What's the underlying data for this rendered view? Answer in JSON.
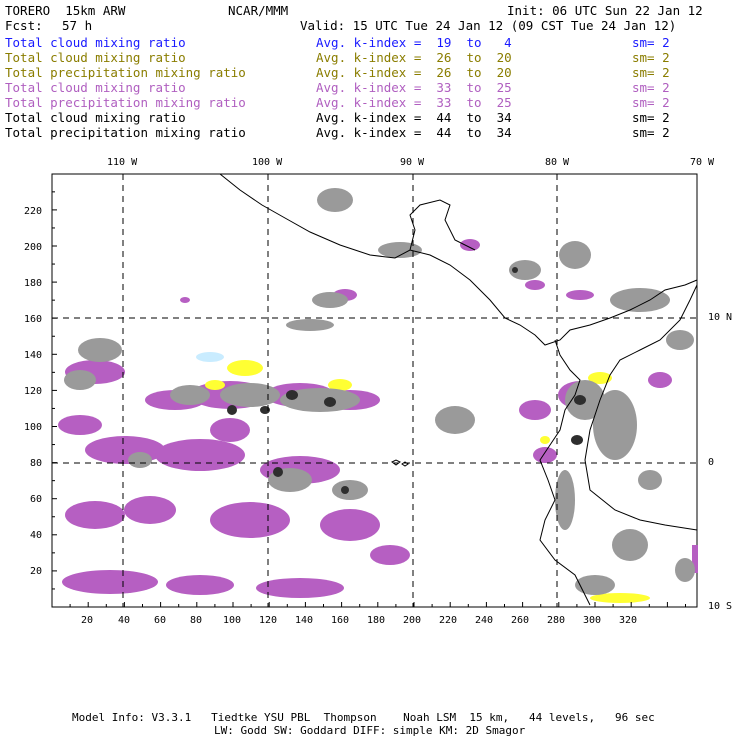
{
  "header": {
    "model_title": "TORERO  15km ARW",
    "org": "NCAR/MMM",
    "init": "Init: 06 UTC Sun 22 Jan 12",
    "fcst_label": "Fcst:",
    "fcst_value": "57 h",
    "valid": "Valid: 15 UTC Tue 24 Jan 12 (09 CST Tue 24 Jan 12)"
  },
  "legend": [
    {
      "field": "Total cloud mixing ratio",
      "index": "Avg. k-index =  19  to   4",
      "sm": "sm= 2",
      "color": "#1a1aff"
    },
    {
      "field": "Total cloud mixing ratio",
      "index": "Avg. k-index =  26  to  20",
      "sm": "sm= 2",
      "color": "#8a7d00"
    },
    {
      "field": "Total precipitation mixing ratio",
      "index": "Avg. k-index =  26  to  20",
      "sm": "sm= 2",
      "color": "#8a7d00"
    },
    {
      "field": "Total cloud mixing ratio",
      "index": "Avg. k-index =  33  to  25",
      "sm": "sm= 2",
      "color": "#b05fc0"
    },
    {
      "field": "Total precipitation mixing ratio",
      "index": "Avg. k-index =  33  to  25",
      "sm": "sm= 2",
      "color": "#b05fc0"
    },
    {
      "field": "Total cloud mixing ratio",
      "index": "Avg. k-index =  44  to  34",
      "sm": "sm= 2",
      "color": "#000000"
    },
    {
      "field": "Total precipitation mixing ratio",
      "index": "Avg. k-index =  44  to  34",
      "sm": "sm= 2",
      "color": "#000000"
    }
  ],
  "map": {
    "lon_labels": [
      "110 W",
      "100 W",
      "90 W",
      "80 W",
      "70 W"
    ],
    "lat_labels": [
      "10 N",
      "0",
      "10 S"
    ],
    "x_ticks": [
      "20",
      "40",
      "60",
      "80",
      "100",
      "120",
      "140",
      "160",
      "180",
      "200",
      "220",
      "240",
      "260",
      "280",
      "300",
      "320"
    ],
    "y_ticks": [
      "20",
      "40",
      "60",
      "80",
      "100",
      "120",
      "140",
      "160",
      "180",
      "200",
      "220"
    ],
    "colors": {
      "gray_cloud": "#9a9a9a",
      "dark_cloud": "#2e2e2e",
      "purple_precip": "#b65fc2",
      "yellow": "#ffff33",
      "light_blue": "#c9ecff"
    }
  },
  "footer": {
    "line1": "Model Info: V3.3.1   Tiedtke YSU PBL  Thompson    Noah LSM  15 km,   44 levels,   96 sec",
    "line2": "LW: Godd SW: Goddard DIFF: simple KM: 2D Smagor"
  }
}
